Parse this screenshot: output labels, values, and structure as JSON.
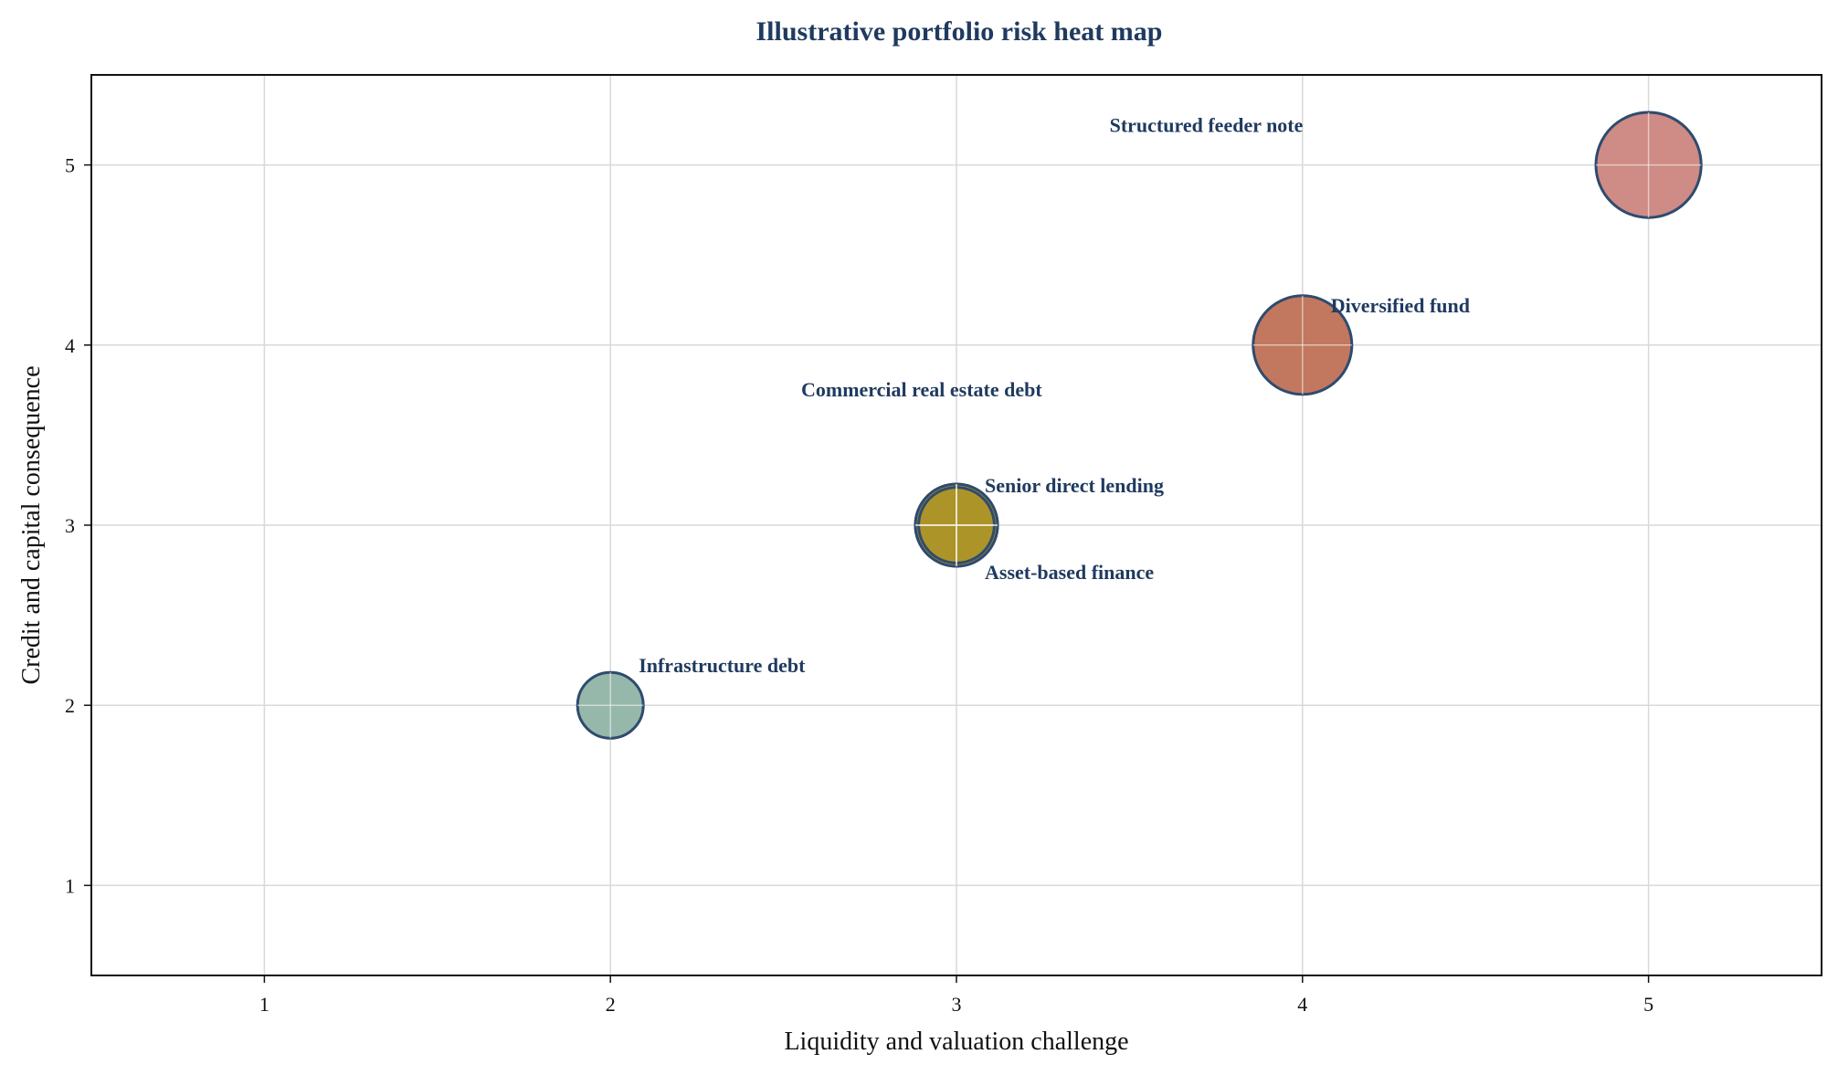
{
  "chart_data": {
    "type": "scatter",
    "title": "Illustrative portfolio risk heat map",
    "xlabel": "Liquidity and valuation challenge",
    "ylabel": "Credit and capital consequence",
    "xlim": [
      0.5,
      5.5
    ],
    "ylim": [
      0.5,
      5.5
    ],
    "xticks": [
      1,
      2,
      3,
      4,
      5
    ],
    "yticks": [
      1,
      2,
      3,
      4,
      5
    ],
    "grid": true,
    "points": [
      {
        "label": "Infrastructure debt",
        "x": 2,
        "y": 2,
        "size": 1,
        "color": "#7fa898"
      },
      {
        "label": "Senior direct lending",
        "x": 3,
        "y": 3,
        "size": 1.25,
        "color": "#a6a24a"
      },
      {
        "label": "Asset-based finance",
        "x": 3,
        "y": 3,
        "size": 1.25,
        "color": "#b38f20"
      },
      {
        "label": "Commercial real estate debt",
        "x": 3,
        "y": 3,
        "size": 1.15,
        "color": "#a99428"
      },
      {
        "label": "Diversified fund",
        "x": 4,
        "y": 4,
        "size": 1.5,
        "color": "#b45a3c"
      },
      {
        "label": "Structured feeder note",
        "x": 5,
        "y": 5,
        "size": 1.6,
        "color": "#c4716a"
      }
    ],
    "marker_edge_color": "#2f4b6e"
  }
}
